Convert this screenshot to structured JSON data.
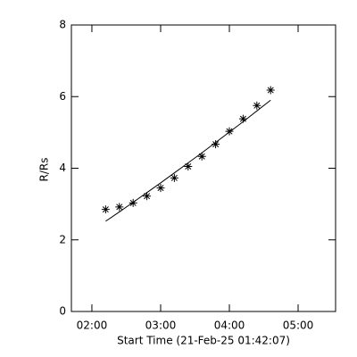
{
  "chart_data": {
    "type": "scatter",
    "xlabel": "Start Time (21-Feb-25 01:42:07)",
    "ylabel": "R/Rs",
    "xlim": [
      1.702,
      5.545
    ],
    "ylim": [
      0,
      8
    ],
    "xticks": [
      {
        "value": 2,
        "label": "02:00"
      },
      {
        "value": 3,
        "label": "03:00"
      },
      {
        "value": 4,
        "label": "04:00"
      },
      {
        "value": 5,
        "label": "05:00"
      }
    ],
    "yticks": [
      0,
      2,
      4,
      6,
      8
    ],
    "color": "#000000",
    "series": [
      {
        "style": "marker",
        "x": [
          2.2,
          2.4,
          2.6,
          2.8,
          3.0,
          3.2,
          3.4,
          3.6,
          3.8,
          4.0,
          4.2,
          4.4,
          4.6
        ],
        "values": [
          2.85,
          2.92,
          3.03,
          3.22,
          3.45,
          3.73,
          4.05,
          4.33,
          4.67,
          5.03,
          5.38,
          5.75,
          6.18
        ]
      },
      {
        "style": "line",
        "x": [
          2.2,
          2.4,
          2.6,
          2.8,
          3.0,
          3.2,
          3.4,
          3.6,
          3.8,
          4.0,
          4.2,
          4.4,
          4.6
        ],
        "values": [
          2.52,
          2.78,
          3.05,
          3.32,
          3.59,
          3.87,
          4.15,
          4.43,
          4.72,
          5.01,
          5.3,
          5.6,
          5.9
        ]
      }
    ]
  }
}
